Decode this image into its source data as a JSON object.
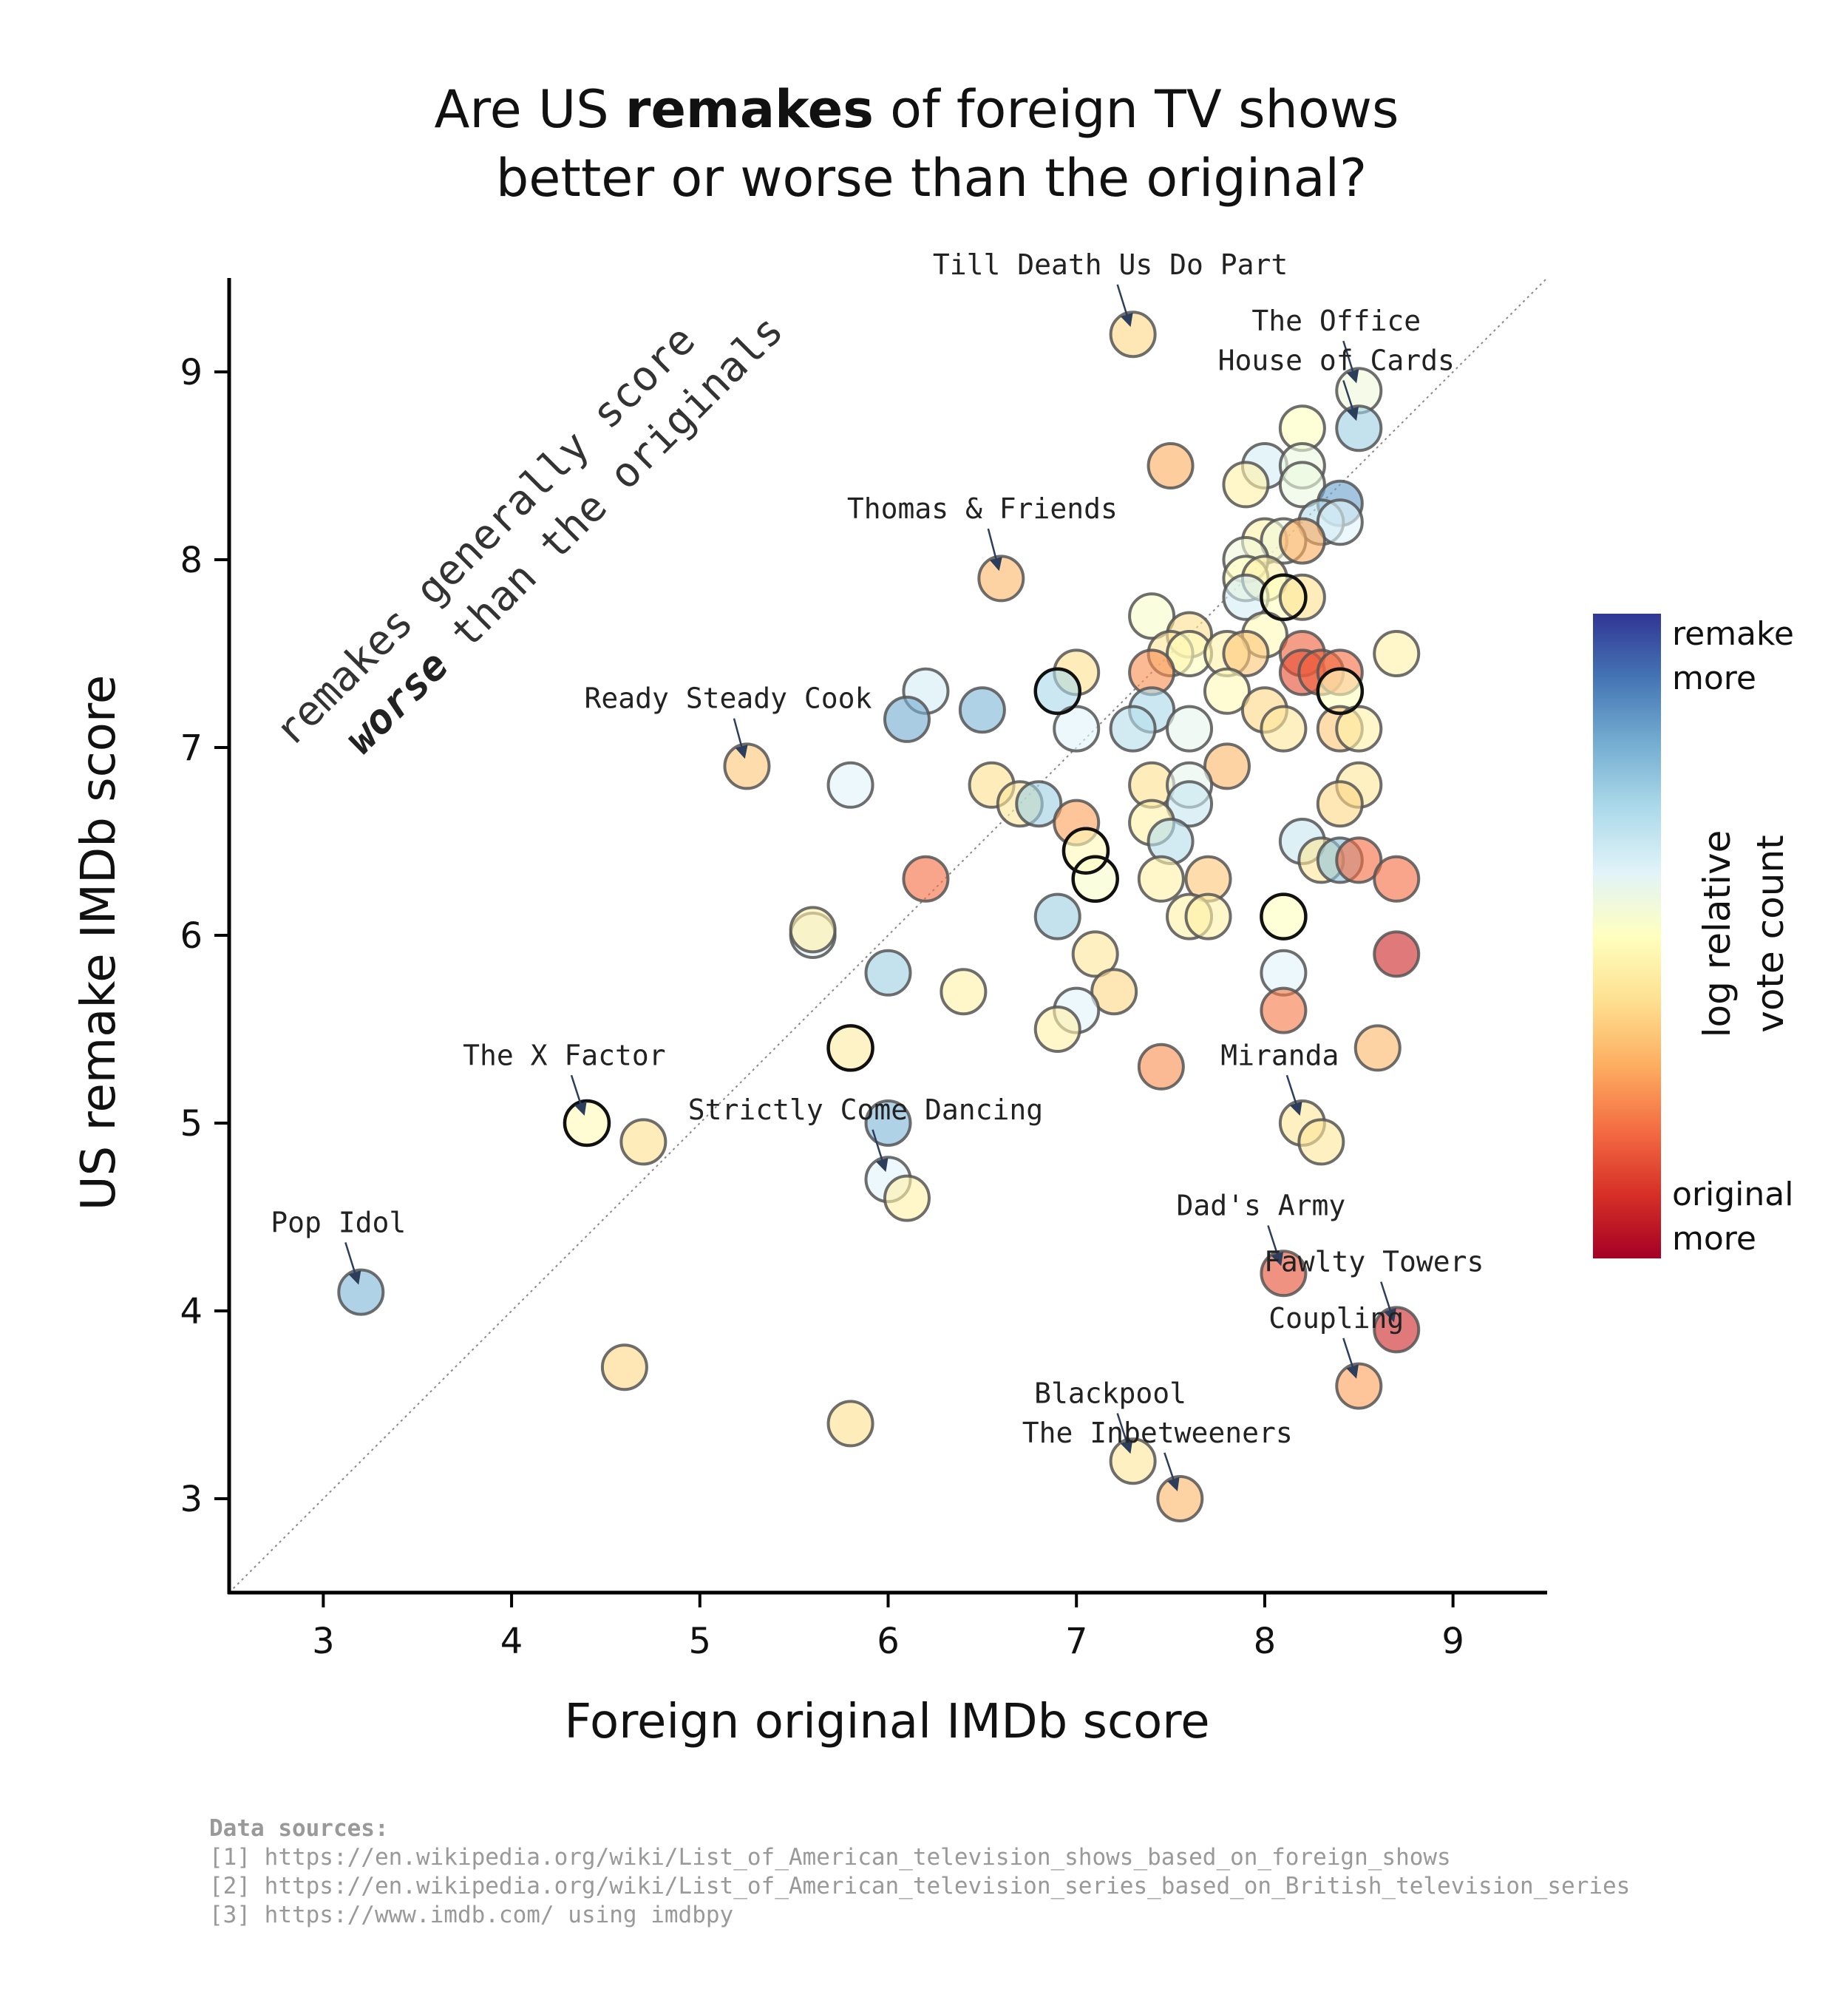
{
  "chart_data": {
    "type": "scatter",
    "title_parts": [
      {
        "text": "Are US ",
        "bold": false
      },
      {
        "text": "remakes",
        "bold": true
      },
      {
        "text": " of foreign TV shows",
        "bold": false
      }
    ],
    "title_line2": "better or worse than the original?",
    "xlabel": "Foreign original IMDb score",
    "ylabel": "US remake IMDb score",
    "xlim": [
      2.5,
      9.5
    ],
    "ylim": [
      2.5,
      9.5
    ],
    "xticks": [
      "3",
      "4",
      "5",
      "6",
      "7",
      "8",
      "9"
    ],
    "yticks": [
      "3",
      "4",
      "5",
      "6",
      "7",
      "8",
      "9"
    ],
    "diagonal_note_line1": "remakes generally score",
    "diagonal_note_bold": "worse",
    "diagonal_note_rest": " than the originals",
    "colorbar": {
      "title_line1": "log relative",
      "title_line2": "vote count",
      "top_label_line1": "remake",
      "top_label_line2": "more",
      "bottom_label_line1": "original",
      "bottom_label_line2": "more"
    },
    "points": [
      {
        "x": 7.3,
        "y": 9.2,
        "c": 0.38
      },
      {
        "x": 8.5,
        "y": 8.9,
        "c": 0.55
      },
      {
        "x": 8.5,
        "y": 8.7,
        "c": 0.72
      },
      {
        "x": 8.2,
        "y": 8.7,
        "c": 0.5
      },
      {
        "x": 7.5,
        "y": 8.5,
        "c": 0.3
      },
      {
        "x": 8.0,
        "y": 8.5,
        "c": 0.62
      },
      {
        "x": 8.2,
        "y": 8.5,
        "c": 0.56
      },
      {
        "x": 7.9,
        "y": 8.4,
        "c": 0.45
      },
      {
        "x": 8.2,
        "y": 8.4,
        "c": 0.56
      },
      {
        "x": 8.4,
        "y": 8.3,
        "c": 0.82
      },
      {
        "x": 8.3,
        "y": 8.2,
        "c": 0.68
      },
      {
        "x": 8.4,
        "y": 8.2,
        "c": 0.6
      },
      {
        "x": 6.6,
        "y": 7.9,
        "c": 0.32
      },
      {
        "x": 8.0,
        "y": 8.1,
        "c": 0.45
      },
      {
        "x": 8.1,
        "y": 8.1,
        "c": 0.55
      },
      {
        "x": 8.2,
        "y": 8.1,
        "c": 0.3
      },
      {
        "x": 7.9,
        "y": 8.0,
        "c": 0.55
      },
      {
        "x": 7.9,
        "y": 7.9,
        "c": 0.5
      },
      {
        "x": 8.0,
        "y": 7.9,
        "c": 0.45
      },
      {
        "x": 7.9,
        "y": 7.8,
        "c": 0.62
      },
      {
        "x": 8.1,
        "y": 7.8,
        "c": 0.5
      },
      {
        "x": 8.2,
        "y": 7.8,
        "c": 0.4
      },
      {
        "x": 7.4,
        "y": 7.7,
        "c": 0.52
      },
      {
        "x": 7.6,
        "y": 7.6,
        "c": 0.4
      },
      {
        "x": 8.0,
        "y": 7.6,
        "c": 0.48
      },
      {
        "x": 7.5,
        "y": 7.5,
        "c": 0.42
      },
      {
        "x": 7.6,
        "y": 7.5,
        "c": 0.5
      },
      {
        "x": 7.8,
        "y": 7.5,
        "c": 0.45
      },
      {
        "x": 7.9,
        "y": 7.5,
        "c": 0.35
      },
      {
        "x": 8.7,
        "y": 7.5,
        "c": 0.45
      },
      {
        "x": 8.2,
        "y": 7.5,
        "c": 0.18
      },
      {
        "x": 7.0,
        "y": 7.4,
        "c": 0.4
      },
      {
        "x": 7.4,
        "y": 7.4,
        "c": 0.25
      },
      {
        "x": 8.2,
        "y": 7.4,
        "c": 0.15
      },
      {
        "x": 8.3,
        "y": 7.4,
        "c": 0.18
      },
      {
        "x": 8.4,
        "y": 7.4,
        "c": 0.2
      },
      {
        "x": 6.2,
        "y": 7.3,
        "c": 0.62
      },
      {
        "x": 6.9,
        "y": 7.3,
        "c": 0.7
      },
      {
        "x": 7.8,
        "y": 7.3,
        "c": 0.48
      },
      {
        "x": 8.4,
        "y": 7.3,
        "c": 0.5
      },
      {
        "x": 6.1,
        "y": 7.15,
        "c": 0.8
      },
      {
        "x": 6.5,
        "y": 7.2,
        "c": 0.78
      },
      {
        "x": 7.4,
        "y": 7.2,
        "c": 0.7
      },
      {
        "x": 8.0,
        "y": 7.2,
        "c": 0.38
      },
      {
        "x": 7.0,
        "y": 7.1,
        "c": 0.6
      },
      {
        "x": 7.3,
        "y": 7.1,
        "c": 0.68
      },
      {
        "x": 7.6,
        "y": 7.1,
        "c": 0.58
      },
      {
        "x": 8.1,
        "y": 7.1,
        "c": 0.42
      },
      {
        "x": 8.4,
        "y": 7.1,
        "c": 0.35
      },
      {
        "x": 8.5,
        "y": 7.1,
        "c": 0.45
      },
      {
        "x": 5.25,
        "y": 6.9,
        "c": 0.35
      },
      {
        "x": 7.8,
        "y": 6.9,
        "c": 0.32
      },
      {
        "x": 5.8,
        "y": 6.8,
        "c": 0.6
      },
      {
        "x": 6.55,
        "y": 6.8,
        "c": 0.4
      },
      {
        "x": 7.4,
        "y": 6.8,
        "c": 0.4
      },
      {
        "x": 7.6,
        "y": 6.8,
        "c": 0.58
      },
      {
        "x": 8.5,
        "y": 6.8,
        "c": 0.42
      },
      {
        "x": 6.7,
        "y": 6.7,
        "c": 0.42
      },
      {
        "x": 6.8,
        "y": 6.7,
        "c": 0.72
      },
      {
        "x": 7.6,
        "y": 6.7,
        "c": 0.65
      },
      {
        "x": 8.4,
        "y": 6.7,
        "c": 0.38
      },
      {
        "x": 7.0,
        "y": 6.6,
        "c": 0.28
      },
      {
        "x": 7.4,
        "y": 6.6,
        "c": 0.45
      },
      {
        "x": 7.5,
        "y": 6.5,
        "c": 0.68
      },
      {
        "x": 8.2,
        "y": 6.5,
        "c": 0.65
      },
      {
        "x": 7.05,
        "y": 6.45,
        "c": 0.48
      },
      {
        "x": 8.3,
        "y": 6.4,
        "c": 0.42
      },
      {
        "x": 8.4,
        "y": 6.4,
        "c": 0.75
      },
      {
        "x": 8.5,
        "y": 6.4,
        "c": 0.2
      },
      {
        "x": 6.2,
        "y": 6.3,
        "c": 0.2
      },
      {
        "x": 7.1,
        "y": 6.3,
        "c": 0.52
      },
      {
        "x": 7.45,
        "y": 6.3,
        "c": 0.45
      },
      {
        "x": 7.7,
        "y": 6.3,
        "c": 0.35
      },
      {
        "x": 8.7,
        "y": 6.3,
        "c": 0.2
      },
      {
        "x": 5.6,
        "y": 6.0,
        "c": 0.6
      },
      {
        "x": 5.6,
        "y": 6.03,
        "c": 0.45
      },
      {
        "x": 6.9,
        "y": 6.1,
        "c": 0.72
      },
      {
        "x": 7.6,
        "y": 6.1,
        "c": 0.45
      },
      {
        "x": 7.7,
        "y": 6.1,
        "c": 0.45
      },
      {
        "x": 8.1,
        "y": 6.1,
        "c": 0.5
      },
      {
        "x": 7.1,
        "y": 5.9,
        "c": 0.42
      },
      {
        "x": 8.7,
        "y": 5.9,
        "c": 0.08
      },
      {
        "x": 6.0,
        "y": 5.8,
        "c": 0.72
      },
      {
        "x": 8.1,
        "y": 5.8,
        "c": 0.6
      },
      {
        "x": 6.4,
        "y": 5.7,
        "c": 0.45
      },
      {
        "x": 7.2,
        "y": 5.7,
        "c": 0.38
      },
      {
        "x": 7.0,
        "y": 5.6,
        "c": 0.6
      },
      {
        "x": 8.1,
        "y": 5.6,
        "c": 0.22
      },
      {
        "x": 5.8,
        "y": 5.4,
        "c": 0.44
      },
      {
        "x": 8.6,
        "y": 5.4,
        "c": 0.32
      },
      {
        "x": 6.9,
        "y": 5.5,
        "c": 0.45
      },
      {
        "x": 7.45,
        "y": 5.3,
        "c": 0.25
      },
      {
        "x": 4.4,
        "y": 5.0,
        "c": 0.48
      },
      {
        "x": 4.7,
        "y": 4.9,
        "c": 0.4
      },
      {
        "x": 6.0,
        "y": 5.0,
        "c": 0.78
      },
      {
        "x": 8.2,
        "y": 5.0,
        "c": 0.42
      },
      {
        "x": 8.3,
        "y": 4.9,
        "c": 0.42
      },
      {
        "x": 6.0,
        "y": 4.7,
        "c": 0.6
      },
      {
        "x": 6.1,
        "y": 4.6,
        "c": 0.45
      },
      {
        "x": 3.2,
        "y": 4.1,
        "c": 0.78
      },
      {
        "x": 8.1,
        "y": 4.2,
        "c": 0.15
      },
      {
        "x": 8.7,
        "y": 3.9,
        "c": 0.08
      },
      {
        "x": 4.6,
        "y": 3.7,
        "c": 0.38
      },
      {
        "x": 8.5,
        "y": 3.6,
        "c": 0.28
      },
      {
        "x": 5.8,
        "y": 3.4,
        "c": 0.4
      },
      {
        "x": 7.3,
        "y": 3.2,
        "c": 0.42
      },
      {
        "x": 7.55,
        "y": 3.0,
        "c": 0.32
      }
    ],
    "dark_outline_points": [
      {
        "x": 6.9,
        "y": 7.3
      },
      {
        "x": 8.1,
        "y": 7.8
      },
      {
        "x": 8.4,
        "y": 7.3
      },
      {
        "x": 7.05,
        "y": 6.45
      },
      {
        "x": 7.1,
        "y": 6.3
      },
      {
        "x": 8.1,
        "y": 6.1
      },
      {
        "x": 5.8,
        "y": 5.4
      },
      {
        "x": 4.4,
        "y": 5.0
      }
    ],
    "annotations": [
      {
        "text": "Till Death Us Do Part",
        "x": 7.3,
        "y": 9.2,
        "tx": 7.18,
        "ty": 9.52
      },
      {
        "text": "The Office",
        "x": 8.5,
        "y": 8.9,
        "tx": 8.38,
        "ty": 9.22
      },
      {
        "text": "House of Cards",
        "x": 8.5,
        "y": 8.7,
        "tx": 8.38,
        "ty": 9.01
      },
      {
        "text": "Thomas & Friends",
        "x": 6.6,
        "y": 7.9,
        "tx": 6.5,
        "ty": 8.22
      },
      {
        "text": "Ready Steady Cook",
        "x": 5.25,
        "y": 6.9,
        "tx": 5.15,
        "ty": 7.21
      },
      {
        "text": "The X Factor",
        "x": 4.4,
        "y": 5.0,
        "tx": 4.28,
        "ty": 5.31
      },
      {
        "text": "Strictly Come Dancing",
        "x": 6.0,
        "y": 4.7,
        "tx": 5.88,
        "ty": 5.02
      },
      {
        "text": "Miranda",
        "x": 8.2,
        "y": 5.0,
        "tx": 8.08,
        "ty": 5.31
      },
      {
        "text": "Pop Idol",
        "x": 3.2,
        "y": 4.1,
        "tx": 3.08,
        "ty": 4.42
      },
      {
        "text": "Dad's Army",
        "x": 8.1,
        "y": 4.2,
        "tx": 7.98,
        "ty": 4.51
      },
      {
        "text": "Fawlty Towers",
        "x": 8.7,
        "y": 3.9,
        "tx": 8.58,
        "ty": 4.21
      },
      {
        "text": "Coupling",
        "x": 8.5,
        "y": 3.6,
        "tx": 8.38,
        "ty": 3.91
      },
      {
        "text": "Blackpool",
        "x": 7.3,
        "y": 3.2,
        "tx": 7.18,
        "ty": 3.51
      },
      {
        "text": "The Inbetweeners",
        "x": 7.55,
        "y": 3.0,
        "tx": 7.43,
        "ty": 3.3
      }
    ],
    "colors": {
      "cmap": [
        "#a50026",
        "#d73027",
        "#f46d43",
        "#fdae61",
        "#fee090",
        "#ffffbf",
        "#e0f3f8",
        "#abd9e9",
        "#74add1",
        "#4575b4",
        "#313695"
      ],
      "marker_edge": "#555555",
      "dark_edge": "#111111",
      "arrow": "#2c3e5c"
    }
  },
  "sources": {
    "heading": "Data sources:",
    "lines": [
      "[1] https://en.wikipedia.org/wiki/List_of_American_television_shows_based_on_foreign_shows",
      "[2] https://en.wikipedia.org/wiki/List_of_American_television_series_based_on_British_television_series",
      "[3] https://www.imdb.com/ using imdbpy"
    ]
  }
}
